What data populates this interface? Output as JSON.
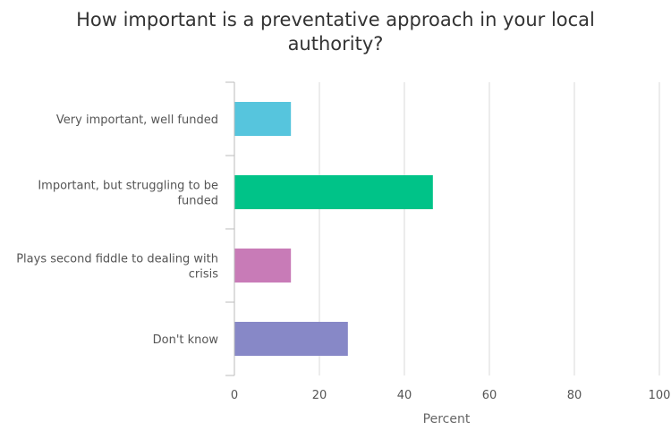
{
  "chart_data": {
    "type": "bar",
    "orientation": "horizontal",
    "title_lines": [
      "How important is a preventative approach in your local",
      "authority?"
    ],
    "xlabel": "Percent",
    "ylabel": "",
    "xlim": [
      0,
      100
    ],
    "x_ticks": [
      0,
      20,
      40,
      60,
      80,
      100
    ],
    "grid": true,
    "legend": "none",
    "categories": [
      [
        "Very important, well funded"
      ],
      [
        "Important, but struggling to be",
        "funded"
      ],
      [
        "Plays second fiddle to dealing with",
        "crisis"
      ],
      [
        "Don't know"
      ]
    ],
    "values": [
      13.3,
      46.7,
      13.3,
      26.7
    ],
    "colors": [
      "#56c5dd",
      "#00c388",
      "#c87bb7",
      "#8788c7"
    ]
  }
}
